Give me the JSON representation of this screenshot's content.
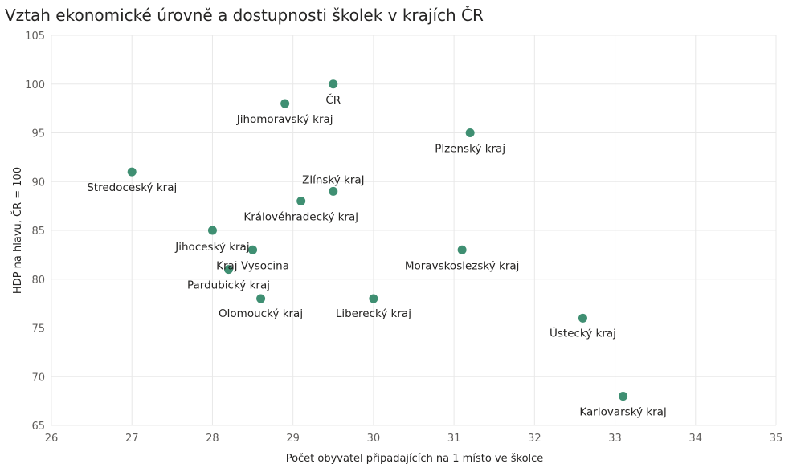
{
  "chart_data": {
    "type": "scatter",
    "title": "Vztah ekonomické úrovně a dostupnosti školek v krajích ČR",
    "xlabel": "Počet obyvatel připadajících na 1 místo ve školce",
    "ylabel": "HDP na hlavu, ČR = 100",
    "xlim": [
      26,
      35
    ],
    "ylim": [
      65,
      105
    ],
    "xticks": [
      26,
      27,
      28,
      29,
      30,
      31,
      32,
      33,
      34,
      35
    ],
    "yticks": [
      65,
      70,
      75,
      80,
      85,
      90,
      95,
      100,
      105
    ],
    "grid": true,
    "point_color": "#3f8f72",
    "points": [
      {
        "label": "ČR",
        "x": 29.5,
        "y": 100
      },
      {
        "label": "Jihomoravský kraj",
        "x": 28.9,
        "y": 98
      },
      {
        "label": "Plzenský kraj",
        "x": 31.2,
        "y": 95
      },
      {
        "label": "Stredoceský kraj",
        "x": 27.0,
        "y": 91
      },
      {
        "label": "Zlínský kraj",
        "x": 29.5,
        "y": 89
      },
      {
        "label": "Královéhradecký kraj",
        "x": 29.1,
        "y": 88
      },
      {
        "label": "Jihoceský kraj",
        "x": 28.0,
        "y": 85
      },
      {
        "label": "Kraj Vysocina",
        "x": 28.5,
        "y": 83
      },
      {
        "label": "Moravskoslezský kraj",
        "x": 31.1,
        "y": 83
      },
      {
        "label": "Pardubický kraj",
        "x": 28.2,
        "y": 81
      },
      {
        "label": "Olomoucký kraj",
        "x": 28.6,
        "y": 78
      },
      {
        "label": "Liberecký kraj",
        "x": 30.0,
        "y": 78
      },
      {
        "label": "Ústecký kraj",
        "x": 32.6,
        "y": 76
      },
      {
        "label": "Karlovarský kraj",
        "x": 33.1,
        "y": 68
      }
    ]
  }
}
